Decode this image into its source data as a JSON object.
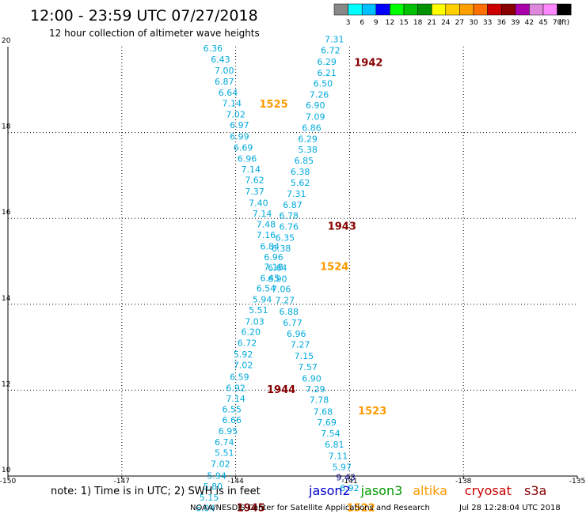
{
  "header": {
    "title": "12:00 - 23:59 UTC 07/27/2018",
    "subtitle": "12 hour collection of altimeter wave heights"
  },
  "colorbar": {
    "labels": [
      "3",
      "6",
      "9",
      "12",
      "15",
      "18",
      "21",
      "24",
      "27",
      "30",
      "33",
      "36",
      "39",
      "42",
      "45",
      "70"
    ],
    "unit": "(ft)",
    "colors": [
      "#888888",
      "#00ffff",
      "#00bfff",
      "#0000ff",
      "#00ff00",
      "#00c000",
      "#009000",
      "#ffff00",
      "#ffd000",
      "#ffa000",
      "#ff7000",
      "#cc0000",
      "#880000",
      "#aa00aa",
      "#dd88dd",
      "#ff88ff",
      "#000000"
    ]
  },
  "footer": {
    "note": "note: 1) Time is in UTC; 2) SWH is in feet",
    "credit": "NOAA/NESDIS Center for Satellite Applications and Research",
    "timestamp": "Jul 28 12:28:04 UTC 2018"
  },
  "legend": [
    {
      "label": "jason2",
      "color": "#0000cc"
    },
    {
      "label": "jason3",
      "color": "#009900"
    },
    {
      "label": "altika",
      "color": "#ff9900"
    },
    {
      "label": "cryosat",
      "color": "#cc0000"
    },
    {
      "label": "s3a",
      "color": "#880000"
    }
  ],
  "chart_data": {
    "type": "scatter",
    "title": "12:00 - 23:59 UTC 07/27/2018",
    "subtitle": "12 hour collection of altimeter wave heights",
    "xlim": [
      -150,
      -135
    ],
    "ylim": [
      10,
      20
    ],
    "xticks": [
      -150,
      -147,
      -144,
      -141,
      -138,
      -135
    ],
    "xtick_labels": [
      "-150",
      "-147",
      "-144",
      "-141",
      "-138",
      "-135"
    ],
    "yticks": [
      10,
      12,
      14,
      16,
      18,
      20
    ],
    "ytick_labels": [
      "10",
      "12",
      "14",
      "16",
      "18",
      "20"
    ],
    "grid": true,
    "unit": "ft",
    "series": [
      {
        "color": "#00aadd",
        "points": [
          {
            "x": -144.6,
            "y": 19.89,
            "label": "6.36"
          },
          {
            "x": -144.4,
            "y": 19.63,
            "label": "6.43"
          },
          {
            "x": -144.3,
            "y": 19.37,
            "label": "7.00"
          },
          {
            "x": -144.3,
            "y": 19.12,
            "label": "6.87"
          },
          {
            "x": -144.2,
            "y": 18.86,
            "label": "6.64"
          },
          {
            "x": -144.1,
            "y": 18.61,
            "label": "7.14"
          },
          {
            "x": -144.0,
            "y": 18.35,
            "label": "7.02"
          },
          {
            "x": -143.9,
            "y": 18.1,
            "label": "6.97"
          },
          {
            "x": -143.9,
            "y": 17.84,
            "label": "6.99"
          },
          {
            "x": -143.8,
            "y": 17.58,
            "label": "6.69"
          },
          {
            "x": -143.7,
            "y": 17.32,
            "label": "6.96"
          },
          {
            "x": -143.6,
            "y": 17.07,
            "label": "7.14"
          },
          {
            "x": -143.5,
            "y": 16.82,
            "label": "7.62"
          },
          {
            "x": -143.5,
            "y": 16.56,
            "label": "7.37"
          },
          {
            "x": -143.4,
            "y": 16.29,
            "label": "7.40"
          },
          {
            "x": -143.3,
            "y": 16.04,
            "label": "7.14"
          },
          {
            "x": -143.2,
            "y": 15.79,
            "label": "7.48"
          },
          {
            "x": -143.2,
            "y": 15.54,
            "label": "7.16"
          },
          {
            "x": -143.1,
            "y": 15.28,
            "label": "6.84"
          },
          {
            "x": -143.0,
            "y": 15.03,
            "label": "6.96"
          },
          {
            "x": -143.0,
            "y": 14.8,
            "label": "7.18"
          },
          {
            "x": -143.1,
            "y": 14.54,
            "label": "6.45"
          },
          {
            "x": -143.2,
            "y": 14.3,
            "label": "6.54"
          },
          {
            "x": -143.3,
            "y": 14.04,
            "label": "5.94"
          },
          {
            "x": -143.4,
            "y": 13.79,
            "label": "5.51"
          },
          {
            "x": -143.5,
            "y": 13.53,
            "label": "7.03"
          },
          {
            "x": -143.6,
            "y": 13.29,
            "label": "6.20"
          },
          {
            "x": -143.7,
            "y": 13.03,
            "label": "6.72"
          },
          {
            "x": -143.8,
            "y": 12.76,
            "label": "5.92"
          },
          {
            "x": -143.8,
            "y": 12.51,
            "label": "7.02"
          },
          {
            "x": -143.9,
            "y": 12.24,
            "label": "6.59"
          },
          {
            "x": -144.0,
            "y": 11.98,
            "label": "6.92"
          },
          {
            "x": -144.0,
            "y": 11.73,
            "label": "7.14"
          },
          {
            "x": -144.1,
            "y": 11.48,
            "label": "6.55"
          },
          {
            "x": -144.1,
            "y": 11.23,
            "label": "6.66"
          },
          {
            "x": -144.2,
            "y": 10.98,
            "label": "6.95"
          },
          {
            "x": -144.3,
            "y": 10.72,
            "label": "6.74"
          },
          {
            "x": -144.3,
            "y": 10.47,
            "label": "5.51"
          },
          {
            "x": -144.4,
            "y": 10.21,
            "label": "7.02"
          },
          {
            "x": -144.5,
            "y": 9.94,
            "label": "5.94"
          },
          {
            "x": -144.6,
            "y": 9.69,
            "label": "5.80"
          },
          {
            "x": -144.7,
            "y": 9.43,
            "label": "5.15"
          },
          {
            "x": -144.8,
            "y": 9.18,
            "label": "6.04"
          },
          {
            "x": -141.4,
            "y": 20.1,
            "label": "7.31"
          },
          {
            "x": -141.5,
            "y": 19.84,
            "label": "6.72"
          },
          {
            "x": -141.6,
            "y": 19.58,
            "label": "6.29"
          },
          {
            "x": -141.6,
            "y": 19.32,
            "label": "6.21"
          },
          {
            "x": -141.7,
            "y": 19.07,
            "label": "6.50"
          },
          {
            "x": -141.8,
            "y": 18.81,
            "label": "7.26"
          },
          {
            "x": -141.9,
            "y": 18.56,
            "label": "6.90"
          },
          {
            "x": -141.9,
            "y": 18.3,
            "label": "7.09"
          },
          {
            "x": -142.0,
            "y": 18.04,
            "label": "6.86"
          },
          {
            "x": -142.1,
            "y": 17.78,
            "label": "6.29"
          },
          {
            "x": -142.1,
            "y": 17.53,
            "label": "5.38"
          },
          {
            "x": -142.2,
            "y": 17.27,
            "label": "6.85"
          },
          {
            "x": -142.3,
            "y": 17.02,
            "label": "6.38"
          },
          {
            "x": -142.3,
            "y": 16.76,
            "label": "5.62"
          },
          {
            "x": -142.4,
            "y": 16.5,
            "label": "7.31"
          },
          {
            "x": -142.5,
            "y": 16.24,
            "label": "6.87"
          },
          {
            "x": -142.6,
            "y": 15.99,
            "label": "6.78"
          },
          {
            "x": -142.6,
            "y": 15.74,
            "label": "6.76"
          },
          {
            "x": -142.7,
            "y": 15.48,
            "label": "6.35"
          },
          {
            "x": -142.8,
            "y": 15.23,
            "label": "6.38"
          },
          {
            "x": -142.9,
            "y": 14.78,
            "label": "6.64"
          },
          {
            "x": -142.9,
            "y": 14.52,
            "label": "6.90"
          },
          {
            "x": -142.8,
            "y": 14.28,
            "label": "7.06"
          },
          {
            "x": -142.7,
            "y": 14.02,
            "label": "7.27"
          },
          {
            "x": -142.6,
            "y": 13.76,
            "label": "6.88"
          },
          {
            "x": -142.5,
            "y": 13.5,
            "label": "6.77"
          },
          {
            "x": -142.4,
            "y": 13.24,
            "label": "6.96"
          },
          {
            "x": -142.3,
            "y": 12.99,
            "label": "7.27"
          },
          {
            "x": -142.2,
            "y": 12.73,
            "label": "7.15"
          },
          {
            "x": -142.1,
            "y": 12.47,
            "label": "7.57"
          },
          {
            "x": -142.0,
            "y": 12.2,
            "label": "6.90"
          },
          {
            "x": -141.9,
            "y": 11.95,
            "label": "7.29"
          },
          {
            "x": -141.8,
            "y": 11.7,
            "label": "7.78"
          },
          {
            "x": -141.7,
            "y": 11.43,
            "label": "7.68"
          },
          {
            "x": -141.6,
            "y": 11.18,
            "label": "7.69"
          },
          {
            "x": -141.5,
            "y": 10.92,
            "label": "7.54"
          },
          {
            "x": -141.4,
            "y": 10.66,
            "label": "6.81"
          },
          {
            "x": -141.3,
            "y": 10.4,
            "label": "7.11"
          },
          {
            "x": -141.2,
            "y": 10.14,
            "label": "5.97"
          },
          {
            "x": -141.0,
            "y": 9.65,
            "label": "6.92"
          }
        ]
      },
      {
        "color": "#000088",
        "points": [
          {
            "x": -141.1,
            "y": 9.9,
            "label": "9.43"
          }
        ]
      }
    ],
    "pass_labels": [
      {
        "x": -140.5,
        "y": 19.55,
        "label": "1942",
        "color": "#880000"
      },
      {
        "x": -143.0,
        "y": 18.58,
        "label": "1525",
        "color": "#ff9900"
      },
      {
        "x": -141.2,
        "y": 15.74,
        "label": "1943",
        "color": "#880000"
      },
      {
        "x": -141.4,
        "y": 14.8,
        "label": "1524",
        "color": "#ff9900"
      },
      {
        "x": -142.8,
        "y": 11.93,
        "label": "1944",
        "color": "#880000"
      },
      {
        "x": -140.4,
        "y": 11.44,
        "label": "1523",
        "color": "#ff9900"
      },
      {
        "x": -143.6,
        "y": 9.18,
        "label": "1945",
        "color": "#880000"
      },
      {
        "x": -140.7,
        "y": 9.18,
        "label": "1522",
        "color": "#ff9900"
      }
    ]
  }
}
